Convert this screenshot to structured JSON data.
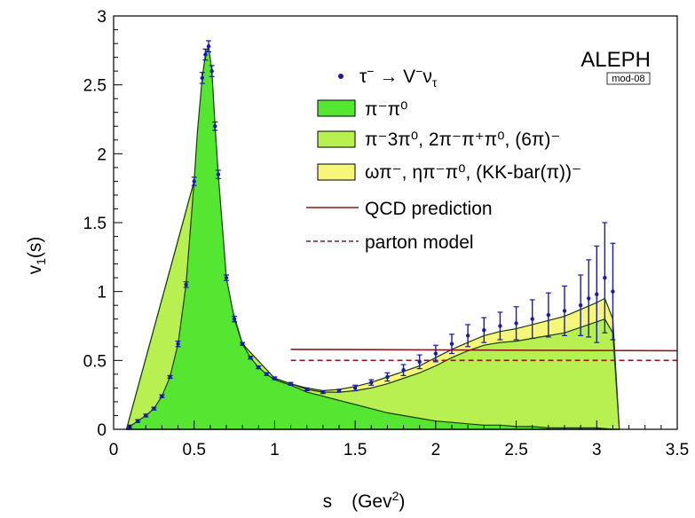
{
  "chart_data": {
    "type": "histogram",
    "title": "",
    "xlabel_main": "s",
    "xlabel_unit": "(Gev",
    "xlabel_unit_exp": "2",
    "xlabel_unit_close": ")",
    "ylabel_main": "v",
    "ylabel_sub": "1",
    "ylabel_arg": "(s)",
    "xlim": [
      0,
      3.5
    ],
    "ylim": [
      0,
      3
    ],
    "xticks": [
      "0",
      "0.5",
      "1",
      "1.5",
      "2",
      "2.5",
      "3",
      "3.5"
    ],
    "yticks": [
      "0",
      "0.5",
      "1",
      "1.5",
      "2",
      "2.5",
      "3"
    ],
    "experiment": "ALEPH",
    "experiment_tag": "mod-08",
    "legend_position": "top-right",
    "colors": {
      "pipi0": "#55e632",
      "multipi": "#b8f051",
      "other": "#f6f67a",
      "data": "#1a1aa8",
      "qcd": "#8b1a1a",
      "parton": "#8b1a1a"
    },
    "legend": {
      "data_pre": "τ",
      "data_sup1": "−",
      "data_mid": " → V",
      "data_sup2": "−",
      "data_nu": "ν",
      "data_nu_sub": "τ",
      "pipi0": "π⁻π⁰",
      "multipi": "π⁻3π⁰, 2π⁻π⁺π⁰, (6π)⁻",
      "other": "ωπ⁻, ηπ⁻π⁰, (KK-bar(π))⁻",
      "qcd": "QCD prediction",
      "parton": "parton model"
    },
    "series": [
      {
        "name": "π⁻π⁰",
        "x": [
          0.08,
          0.1,
          0.15,
          0.2,
          0.25,
          0.3,
          0.35,
          0.4,
          0.45,
          0.5,
          0.52,
          0.55,
          0.57,
          0.59,
          0.61,
          0.63,
          0.65,
          0.68,
          0.7,
          0.75,
          0.8,
          0.85,
          0.9,
          0.95,
          1.0,
          1.1,
          1.2,
          1.3,
          1.4,
          1.5,
          1.6,
          1.7,
          1.8,
          1.9,
          2.0,
          2.1,
          2.2,
          2.3,
          2.4,
          2.5,
          2.6,
          2.7,
          2.8,
          2.9,
          3.0,
          3.1,
          3.14
        ],
        "values": [
          0.0,
          0.02,
          0.06,
          0.1,
          0.15,
          0.24,
          0.38,
          0.62,
          1.05,
          1.8,
          2.15,
          2.55,
          2.72,
          2.78,
          2.6,
          2.2,
          1.85,
          1.4,
          1.1,
          0.8,
          0.62,
          0.52,
          0.45,
          0.4,
          0.36,
          0.32,
          0.27,
          0.24,
          0.21,
          0.18,
          0.15,
          0.12,
          0.1,
          0.08,
          0.06,
          0.05,
          0.04,
          0.03,
          0.03,
          0.02,
          0.02,
          0.01,
          0.01,
          0.01,
          0.01,
          0.0,
          0.0
        ]
      },
      {
        "name": "π⁻3π⁰, 2π⁻π⁺π⁰, (6π)⁻",
        "x": [
          0.08,
          0.5,
          0.8,
          1.0,
          1.1,
          1.2,
          1.3,
          1.4,
          1.5,
          1.6,
          1.7,
          1.8,
          1.9,
          2.0,
          2.1,
          2.2,
          2.3,
          2.4,
          2.5,
          2.6,
          2.7,
          2.8,
          2.9,
          3.0,
          3.05,
          3.1,
          3.14
        ],
        "values": [
          0.0,
          1.8,
          0.62,
          0.37,
          0.33,
          0.29,
          0.27,
          0.27,
          0.28,
          0.3,
          0.33,
          0.37,
          0.41,
          0.46,
          0.52,
          0.57,
          0.61,
          0.63,
          0.64,
          0.66,
          0.68,
          0.7,
          0.74,
          0.78,
          0.8,
          0.7,
          0.0
        ]
      },
      {
        "name": "ωπ⁻, ηπ⁻π⁰, (KK-bar(π))⁻",
        "x": [
          0.08,
          0.5,
          0.8,
          1.0,
          1.1,
          1.2,
          1.3,
          1.4,
          1.5,
          1.6,
          1.7,
          1.8,
          1.9,
          2.0,
          2.1,
          2.2,
          2.3,
          2.4,
          2.5,
          2.6,
          2.7,
          2.8,
          2.9,
          3.0,
          3.05,
          3.1,
          3.14
        ],
        "values": [
          0.0,
          1.8,
          0.62,
          0.37,
          0.33,
          0.3,
          0.28,
          0.29,
          0.31,
          0.34,
          0.38,
          0.42,
          0.46,
          0.52,
          0.58,
          0.63,
          0.68,
          0.71,
          0.73,
          0.76,
          0.79,
          0.82,
          0.87,
          0.92,
          0.95,
          0.8,
          0.0
        ]
      },
      {
        "name": "τ⁻ → V⁻ντ",
        "x": [
          0.1,
          0.15,
          0.2,
          0.25,
          0.3,
          0.35,
          0.4,
          0.45,
          0.5,
          0.55,
          0.57,
          0.59,
          0.61,
          0.63,
          0.65,
          0.7,
          0.75,
          0.8,
          0.85,
          0.9,
          0.95,
          1.0,
          1.1,
          1.2,
          1.3,
          1.4,
          1.5,
          1.6,
          1.7,
          1.8,
          1.9,
          2.0,
          2.1,
          2.2,
          2.3,
          2.4,
          2.5,
          2.6,
          2.7,
          2.8,
          2.9,
          2.95,
          3.0,
          3.05,
          3.1
        ],
        "values": [
          0.02,
          0.06,
          0.1,
          0.15,
          0.24,
          0.38,
          0.62,
          1.05,
          1.8,
          2.55,
          2.72,
          2.78,
          2.6,
          2.2,
          1.85,
          1.1,
          0.8,
          0.62,
          0.52,
          0.45,
          0.4,
          0.37,
          0.33,
          0.29,
          0.27,
          0.28,
          0.3,
          0.34,
          0.38,
          0.43,
          0.49,
          0.55,
          0.62,
          0.68,
          0.72,
          0.75,
          0.77,
          0.8,
          0.83,
          0.86,
          0.9,
          0.95,
          0.98,
          1.1,
          1.0
        ],
        "errors": [
          0.01,
          0.01,
          0.01,
          0.01,
          0.01,
          0.01,
          0.02,
          0.02,
          0.03,
          0.04,
          0.04,
          0.04,
          0.04,
          0.03,
          0.03,
          0.02,
          0.02,
          0.01,
          0.01,
          0.01,
          0.01,
          0.01,
          0.01,
          0.01,
          0.01,
          0.01,
          0.02,
          0.02,
          0.03,
          0.04,
          0.05,
          0.06,
          0.07,
          0.08,
          0.09,
          0.1,
          0.12,
          0.14,
          0.16,
          0.18,
          0.22,
          0.28,
          0.35,
          0.4,
          0.35
        ]
      },
      {
        "name": "QCD prediction",
        "x": [
          1.1,
          3.5
        ],
        "values": [
          0.58,
          0.57
        ]
      },
      {
        "name": "parton model",
        "x": [
          1.1,
          3.5
        ],
        "values": [
          0.5,
          0.5
        ]
      }
    ]
  }
}
